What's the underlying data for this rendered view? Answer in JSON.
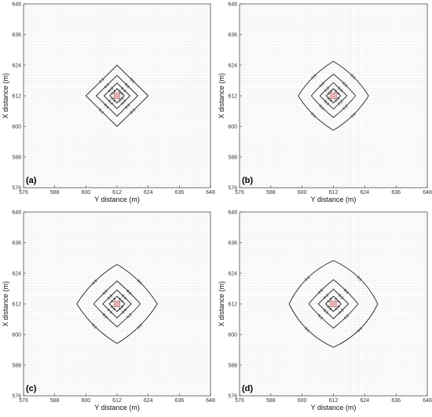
{
  "chart_data": [
    {
      "type": "contour",
      "panel_label": "(a)",
      "xlabel": "Y distance (m)",
      "ylabel": "X distance (m)",
      "xlim": [
        576,
        648
      ],
      "ylim": [
        576,
        648
      ],
      "xticks": [
        576,
        588,
        600,
        612,
        624,
        636,
        648
      ],
      "yticks": [
        576,
        588,
        600,
        612,
        624,
        636,
        648
      ],
      "grid": "fine",
      "center": [
        612,
        612
      ],
      "contours": [
        {
          "label": "0.1",
          "half_widths": [
            12,
            12,
            12,
            12
          ],
          "curvature": 0
        },
        {
          "label": "0.2",
          "half_widths": [
            8,
            8,
            8,
            8
          ],
          "curvature": 0
        },
        {
          "label": "0.3",
          "half_widths": [
            5,
            5,
            5,
            5
          ],
          "curvature": 0
        },
        {
          "label": "0.4",
          "half_widths": [
            2.8,
            2.8,
            2.8,
            2.8
          ],
          "curvature": 0
        }
      ]
    },
    {
      "type": "contour",
      "panel_label": "(b)",
      "xlabel": "Y distance (m)",
      "ylabel": "X distance (m)",
      "xlim": [
        576,
        648
      ],
      "ylim": [
        576,
        648
      ],
      "xticks": [
        576,
        588,
        600,
        612,
        624,
        636,
        648
      ],
      "yticks": [
        576,
        588,
        600,
        612,
        624,
        636,
        648
      ],
      "grid": "fine",
      "center": [
        612,
        612
      ],
      "contours": [
        {
          "label": "0.1",
          "half_widths": [
            13.5,
            13.5,
            13.5,
            13.5
          ],
          "curvature": 0.12
        },
        {
          "label": "0.2",
          "half_widths": [
            8.5,
            8.5,
            8.5,
            8.5
          ],
          "curvature": 0.05
        },
        {
          "label": "0.3",
          "half_widths": [
            5.2,
            5.2,
            5.2,
            5.2
          ],
          "curvature": 0
        },
        {
          "label": "0.4",
          "half_widths": [
            2.8,
            2.8,
            2.8,
            2.8
          ],
          "curvature": 0
        }
      ]
    },
    {
      "type": "contour",
      "panel_label": "(c)",
      "xlabel": "Y distance (m)",
      "ylabel": "X distance (m)",
      "xlim": [
        576,
        648
      ],
      "ylim": [
        576,
        648
      ],
      "xticks": [
        576,
        588,
        600,
        612,
        624,
        636,
        648
      ],
      "yticks": [
        576,
        588,
        600,
        612,
        624,
        636,
        648
      ],
      "grid": "fine",
      "center": [
        612,
        612
      ],
      "contours": [
        {
          "label": "0.1",
          "half_widths": [
            15.5,
            15.5,
            15.5,
            15.5
          ],
          "curvature": 0.12
        },
        {
          "label": "0.2",
          "half_widths": [
            9,
            9,
            9,
            9
          ],
          "curvature": 0.03
        },
        {
          "label": "0.3",
          "half_widths": [
            5.5,
            5.5,
            5.5,
            5.5
          ],
          "curvature": 0
        },
        {
          "label": "0.4",
          "half_widths": [
            3,
            3,
            3,
            3
          ],
          "curvature": 0
        }
      ]
    },
    {
      "type": "contour",
      "panel_label": "(d)",
      "xlabel": "Y distance (m)",
      "ylabel": "X distance (m)",
      "xlim": [
        576,
        648
      ],
      "ylim": [
        576,
        648
      ],
      "xticks": [
        576,
        588,
        600,
        612,
        624,
        636,
        648
      ],
      "yticks": [
        576,
        588,
        600,
        612,
        624,
        636,
        648
      ],
      "grid": "fine",
      "center": [
        612,
        612
      ],
      "contours": [
        {
          "label": "0.1",
          "half_widths": [
            17,
            17,
            17,
            17
          ],
          "curvature": 0.18
        },
        {
          "label": "0.2",
          "half_widths": [
            9.5,
            9.5,
            9.5,
            9.5
          ],
          "curvature": 0.05
        },
        {
          "label": "0.3",
          "half_widths": [
            5.8,
            5.8,
            5.8,
            5.8
          ],
          "curvature": 0
        },
        {
          "label": "0.4",
          "half_widths": [
            3,
            3,
            3,
            3
          ],
          "curvature": 0
        }
      ]
    }
  ],
  "colors": {
    "contour": "#222222",
    "inner_contour": "#b03030",
    "grid": "#e6e6e6",
    "axis": "#333333"
  }
}
